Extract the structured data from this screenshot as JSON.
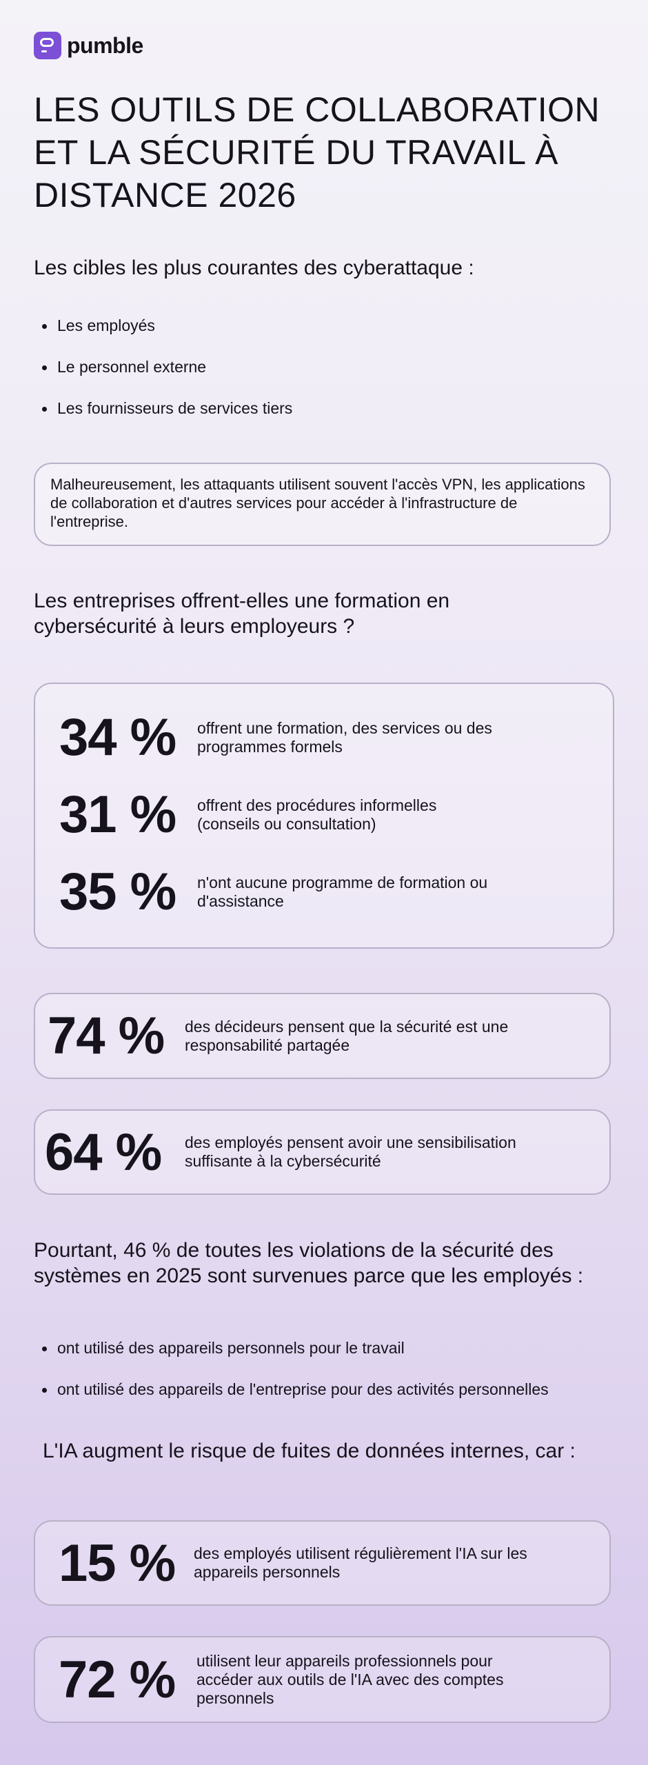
{
  "brand": {
    "name": "pumble",
    "color": "#7b4fd6"
  },
  "title": "LES OUTILS DE COLLABORATION ET LA SÉCURITÉ DU TRAVAIL À DISTANCE 2026",
  "section1": {
    "heading": "Les cibles les plus courantes des cyberattaque :",
    "bullets": [
      "Les employés",
      "Le personnel externe",
      "Les fournisseurs de services tiers"
    ],
    "note": "Malheureusement, les attaquants utilisent souvent l'accès VPN, les applications de collaboration et d'autres services pour accéder à l'infrastructure de l'entreprise."
  },
  "section2": {
    "heading": "Les entreprises offrent-elles une formation en cybersécurité à leurs employeurs ?",
    "stats": [
      {
        "value": "34 %",
        "text": "offrent une formation, des services ou des programmes formels"
      },
      {
        "value": "31 %",
        "text": "offrent des procédures informelles (conseils ou consultation)"
      },
      {
        "value": "35 %",
        "text": "n'ont aucune programme de formation ou d'assistance"
      }
    ]
  },
  "cards1": [
    {
      "value": "74 %",
      "text": "des décideurs pensent que la sécurité est une responsabilité partagée"
    },
    {
      "value": "64 %",
      "text": "des employés pensent avoir une sensibilisation suffisante à la cybersécurité"
    }
  ],
  "section3": {
    "heading": "Pourtant, 46 % de toutes les violations de la sécurité des systèmes en 2025 sont survenues parce que les employés :",
    "bullets": [
      "ont utilisé des appareils personnels pour le travail",
      "ont utilisé des appareils de l'entreprise pour des activités personnelles"
    ]
  },
  "section4": {
    "heading": "L'IA augment le risque de fuites de données internes, car :",
    "cards": [
      {
        "value": "15 %",
        "text": "des employés utilisent régulièrement l'IA sur les appareils personnels"
      },
      {
        "value": "72 %",
        "text": "utilisent leur appareils professionnels pour accéder aux outils de l'IA avec des comptes personnels"
      }
    ]
  }
}
